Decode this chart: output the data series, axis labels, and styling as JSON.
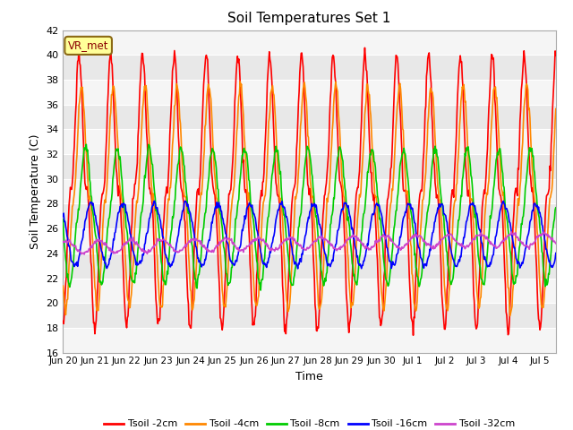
{
  "title": "Soil Temperatures Set 1",
  "xlabel": "Time",
  "ylabel": "Soil Temperature (C)",
  "annotation": "VR_met",
  "ylim": [
    16,
    42
  ],
  "yticks": [
    16,
    18,
    20,
    22,
    24,
    26,
    28,
    30,
    32,
    34,
    36,
    38,
    40,
    42
  ],
  "background_color": "#ffffff",
  "plot_bg_color": "#e8e8e8",
  "grid_color": "#ffffff",
  "band_color_light": "#f0f0f0",
  "band_color_dark": "#e0e0e0",
  "line_colors": [
    "#ff0000",
    "#ff8800",
    "#00cc00",
    "#0000ff",
    "#cc44cc"
  ],
  "line_labels": [
    "Tsoil -2cm",
    "Tsoil -4cm",
    "Tsoil -8cm",
    "Tsoil -16cm",
    "Tsoil -32cm"
  ],
  "x_tick_labels": [
    "Jun 20",
    "Jun 21",
    "Jun 22",
    "Jun 23",
    "Jun 24",
    "Jun 25",
    "Jun 26",
    "Jun 27",
    "Jun 28",
    "Jun 29",
    "Jun 30",
    "Jul 1",
    "Jul 2",
    "Jul 3",
    "Jul 4",
    "Jul 5"
  ],
  "n_days": 15.5,
  "samples_per_day": 48
}
